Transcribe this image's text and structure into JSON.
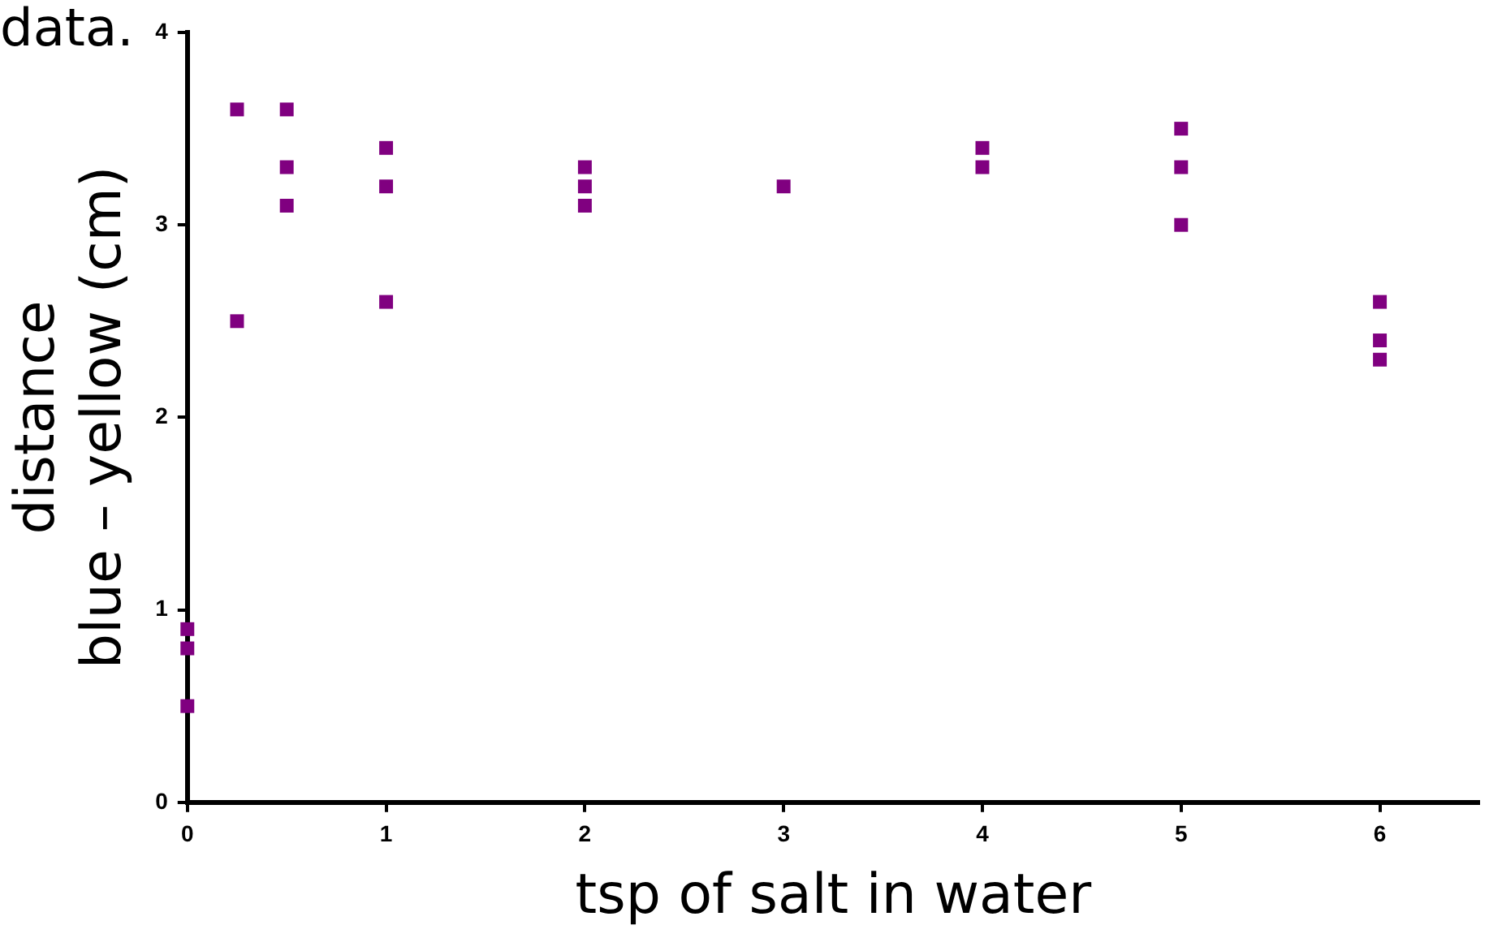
{
  "chart_data": {
    "type": "scatter",
    "xlabel": "tsp of salt in water",
    "ylabel": "distance\nblue – yellow (cm)",
    "annotations": [
      "data."
    ],
    "x": [
      0,
      0,
      0,
      0.25,
      0.25,
      0.5,
      0.5,
      0.5,
      1,
      1,
      1,
      2,
      2,
      2,
      3,
      4,
      4,
      5,
      5,
      5,
      6,
      6,
      6
    ],
    "series": [
      {
        "color": "#800080",
        "values": [
          0.9,
          0.8,
          0.5,
          3.6,
          2.5,
          3.6,
          3.3,
          3.1,
          3.4,
          3.2,
          2.6,
          3.3,
          3.2,
          3.1,
          3.2,
          3.4,
          3.3,
          3.5,
          3.3,
          3.0,
          2.6,
          2.4,
          2.3
        ]
      }
    ],
    "xlim": [
      0,
      6.5
    ],
    "xticks": [
      0,
      1,
      2,
      3,
      4,
      5,
      6
    ],
    "ylim": [
      0,
      4
    ],
    "yticks": [
      0,
      1,
      2,
      3,
      4
    ],
    "marker": "square",
    "grid": false,
    "legend": false
  }
}
